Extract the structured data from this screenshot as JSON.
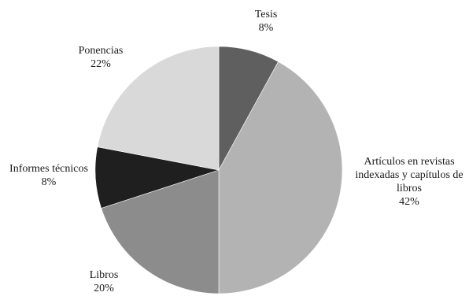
{
  "chart_data": {
    "type": "pie",
    "title": "",
    "start_angle_deg": 0,
    "direction": "clockwise",
    "slices": [
      {
        "label": "Tesis",
        "value": 8,
        "value_label": "8%",
        "color": "#5f5f5f"
      },
      {
        "label": "Artículos en revistas indexadas y capítulos de libros",
        "value": 42,
        "value_label": "42%",
        "color": "#b3b3b3"
      },
      {
        "label": "Libros",
        "value": 20,
        "value_label": "20%",
        "color": "#8c8c8c"
      },
      {
        "label": "Informes técnicos",
        "value": 8,
        "value_label": "8%",
        "color": "#1f1f1f"
      },
      {
        "label": "Ponencias",
        "value": 22,
        "value_label": "22%",
        "color": "#d9d9d9"
      }
    ]
  }
}
